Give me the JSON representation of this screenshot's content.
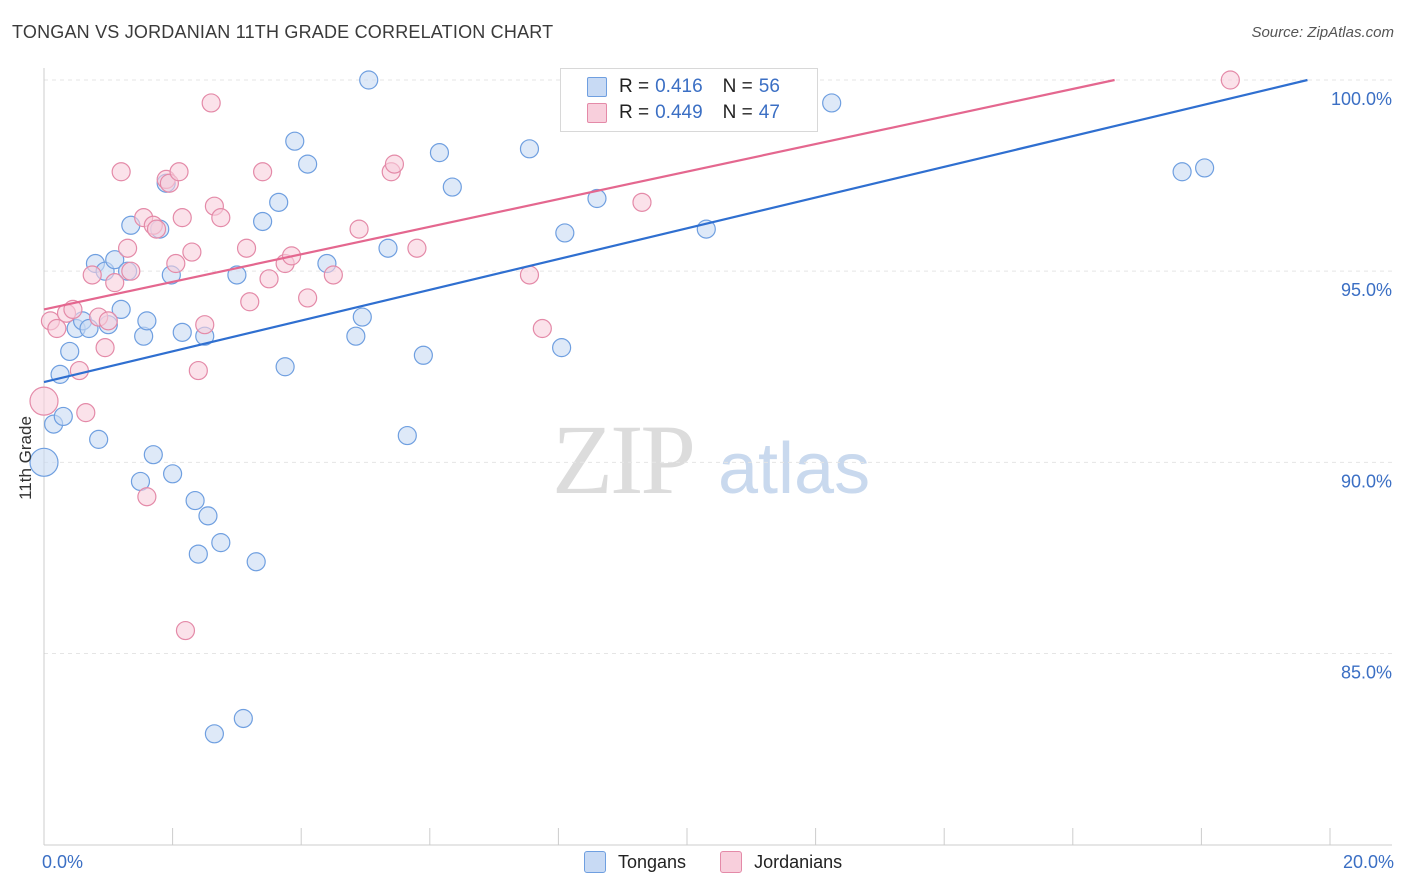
{
  "header": {
    "title": "TONGAN VS JORDANIAN 11TH GRADE CORRELATION CHART",
    "source": "Source: ZipAtlas.com"
  },
  "watermark": {
    "zip": "ZIP",
    "atlas": "atlas"
  },
  "colors": {
    "tongans": "#6f9fe0",
    "tongans_fill": "#c8daf4",
    "tongans_line": "#2f6fd0",
    "jordanians": "#e48aa8",
    "jordanians_fill": "#f8cfdc",
    "jordanians_line": "#e4678f",
    "tick_text": "#3b6fc4",
    "grid": "#e5e5e5"
  },
  "legend": {
    "rows": [
      {
        "r_label": "R =",
        "r_value": "0.416",
        "n_label": "N =",
        "n_value": "56"
      },
      {
        "r_label": "R =",
        "r_value": "0.449",
        "n_label": "N =",
        "n_value": "47"
      }
    ]
  },
  "bottom_legend": {
    "items": [
      "Tongans",
      "Jordanians"
    ]
  },
  "chart_data": {
    "type": "scatter",
    "title": "TONGAN VS JORDANIAN 11TH GRADE CORRELATION CHART",
    "xlabel": "",
    "ylabel": "11th Grade",
    "xlim": [
      0,
      20
    ],
    "ylim": [
      80.5,
      100.8
    ],
    "x_tick_labels": [
      "0.0%",
      "20.0%"
    ],
    "y_ticks": [
      85,
      90,
      95,
      100
    ],
    "y_tick_labels": [
      "85.0%",
      "90.0%",
      "95.0%",
      "100.0%"
    ],
    "grid": true,
    "series": [
      {
        "name": "Tongans",
        "r": 0.416,
        "n": 56,
        "trend": {
          "x": [
            0,
            19.65
          ],
          "y": [
            92.1,
            100.0
          ]
        },
        "points": [
          {
            "x": 0.0,
            "y": 90.0
          },
          {
            "x": 0.15,
            "y": 91.0
          },
          {
            "x": 0.25,
            "y": 92.3
          },
          {
            "x": 0.3,
            "y": 91.2
          },
          {
            "x": 0.4,
            "y": 92.9
          },
          {
            "x": 0.5,
            "y": 93.5
          },
          {
            "x": 0.6,
            "y": 93.7
          },
          {
            "x": 0.7,
            "y": 93.5
          },
          {
            "x": 0.8,
            "y": 95.2
          },
          {
            "x": 0.85,
            "y": 90.6
          },
          {
            "x": 0.95,
            "y": 95.0
          },
          {
            "x": 1.0,
            "y": 93.6
          },
          {
            "x": 1.1,
            "y": 95.3
          },
          {
            "x": 1.2,
            "y": 94.0
          },
          {
            "x": 1.3,
            "y": 95.0
          },
          {
            "x": 1.35,
            "y": 96.2
          },
          {
            "x": 1.5,
            "y": 89.5
          },
          {
            "x": 1.55,
            "y": 93.3
          },
          {
            "x": 1.6,
            "y": 93.7
          },
          {
            "x": 1.7,
            "y": 90.2
          },
          {
            "x": 1.8,
            "y": 96.1
          },
          {
            "x": 1.9,
            "y": 97.3
          },
          {
            "x": 1.98,
            "y": 94.9
          },
          {
            "x": 2.0,
            "y": 89.7
          },
          {
            "x": 2.15,
            "y": 93.4
          },
          {
            "x": 2.35,
            "y": 89.0
          },
          {
            "x": 2.4,
            "y": 87.6
          },
          {
            "x": 2.5,
            "y": 93.3
          },
          {
            "x": 2.55,
            "y": 88.6
          },
          {
            "x": 2.65,
            "y": 82.9
          },
          {
            "x": 2.75,
            "y": 87.9
          },
          {
            "x": 3.0,
            "y": 94.9
          },
          {
            "x": 3.1,
            "y": 83.3
          },
          {
            "x": 3.3,
            "y": 87.4
          },
          {
            "x": 3.4,
            "y": 96.3
          },
          {
            "x": 3.65,
            "y": 96.8
          },
          {
            "x": 3.75,
            "y": 92.5
          },
          {
            "x": 3.9,
            "y": 98.4
          },
          {
            "x": 4.1,
            "y": 97.8
          },
          {
            "x": 4.4,
            "y": 95.2
          },
          {
            "x": 4.85,
            "y": 93.3
          },
          {
            "x": 4.95,
            "y": 93.8
          },
          {
            "x": 5.05,
            "y": 100.0
          },
          {
            "x": 5.35,
            "y": 95.6
          },
          {
            "x": 5.65,
            "y": 90.7
          },
          {
            "x": 5.9,
            "y": 92.8
          },
          {
            "x": 6.15,
            "y": 98.1
          },
          {
            "x": 6.35,
            "y": 97.2
          },
          {
            "x": 7.55,
            "y": 98.2
          },
          {
            "x": 8.05,
            "y": 93.0
          },
          {
            "x": 8.1,
            "y": 96.0
          },
          {
            "x": 8.6,
            "y": 96.9
          },
          {
            "x": 10.3,
            "y": 96.1
          },
          {
            "x": 12.25,
            "y": 99.4
          },
          {
            "x": 17.7,
            "y": 97.6
          },
          {
            "x": 18.05,
            "y": 97.7
          }
        ]
      },
      {
        "name": "Jordanians",
        "r": 0.449,
        "n": 47,
        "trend": {
          "x": [
            0,
            16.65
          ],
          "y": [
            94.0,
            100.0
          ]
        },
        "points": [
          {
            "x": 0.0,
            "y": 91.6
          },
          {
            "x": 0.1,
            "y": 93.7
          },
          {
            "x": 0.2,
            "y": 93.5
          },
          {
            "x": 0.35,
            "y": 93.9
          },
          {
            "x": 0.45,
            "y": 94.0
          },
          {
            "x": 0.55,
            "y": 92.4
          },
          {
            "x": 0.65,
            "y": 91.3
          },
          {
            "x": 0.75,
            "y": 94.9
          },
          {
            "x": 0.85,
            "y": 93.8
          },
          {
            "x": 0.95,
            "y": 93.0
          },
          {
            "x": 1.0,
            "y": 93.7
          },
          {
            "x": 1.1,
            "y": 94.7
          },
          {
            "x": 1.2,
            "y": 97.6
          },
          {
            "x": 1.3,
            "y": 95.6
          },
          {
            "x": 1.35,
            "y": 95.0
          },
          {
            "x": 1.55,
            "y": 96.4
          },
          {
            "x": 1.6,
            "y": 89.1
          },
          {
            "x": 1.7,
            "y": 96.2
          },
          {
            "x": 1.75,
            "y": 96.1
          },
          {
            "x": 1.9,
            "y": 97.4
          },
          {
            "x": 1.95,
            "y": 97.3
          },
          {
            "x": 2.05,
            "y": 95.2
          },
          {
            "x": 2.1,
            "y": 97.6
          },
          {
            "x": 2.15,
            "y": 96.4
          },
          {
            "x": 2.2,
            "y": 85.6
          },
          {
            "x": 2.3,
            "y": 95.5
          },
          {
            "x": 2.4,
            "y": 92.4
          },
          {
            "x": 2.5,
            "y": 93.6
          },
          {
            "x": 2.6,
            "y": 99.4
          },
          {
            "x": 2.65,
            "y": 96.7
          },
          {
            "x": 2.75,
            "y": 96.4
          },
          {
            "x": 3.15,
            "y": 95.6
          },
          {
            "x": 3.2,
            "y": 94.2
          },
          {
            "x": 3.4,
            "y": 97.6
          },
          {
            "x": 3.5,
            "y": 94.8
          },
          {
            "x": 3.75,
            "y": 95.2
          },
          {
            "x": 3.85,
            "y": 95.4
          },
          {
            "x": 4.1,
            "y": 94.3
          },
          {
            "x": 4.5,
            "y": 94.9
          },
          {
            "x": 4.9,
            "y": 96.1
          },
          {
            "x": 5.4,
            "y": 97.6
          },
          {
            "x": 5.45,
            "y": 97.8
          },
          {
            "x": 5.8,
            "y": 95.6
          },
          {
            "x": 7.55,
            "y": 94.9
          },
          {
            "x": 7.75,
            "y": 93.5
          },
          {
            "x": 9.3,
            "y": 96.8
          },
          {
            "x": 18.45,
            "y": 100.0
          }
        ]
      }
    ]
  }
}
